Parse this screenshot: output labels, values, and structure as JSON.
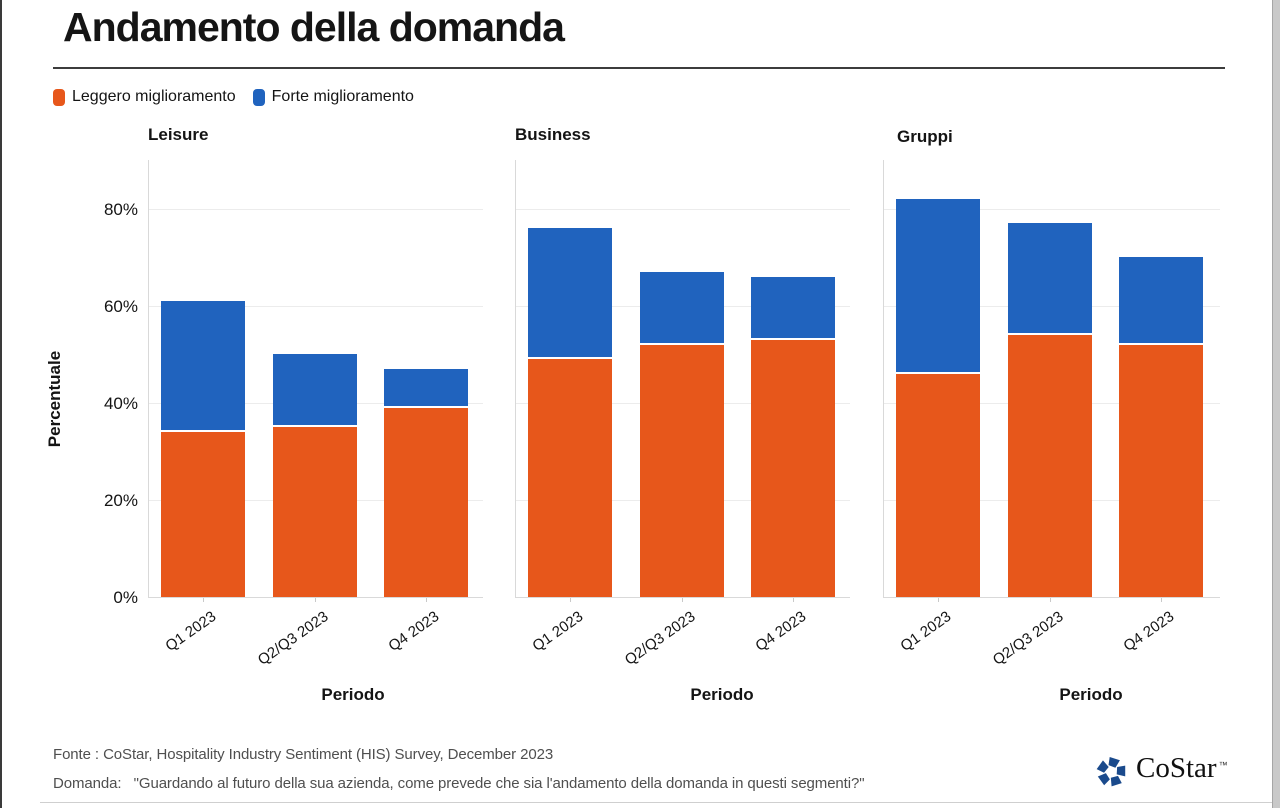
{
  "title": "Andamento della domanda",
  "legend": {
    "items": [
      {
        "label": "Leggero miglioramento"
      },
      {
        "label": "Forte miglioramento"
      }
    ]
  },
  "chart_data": {
    "type": "bar",
    "stacked": true,
    "categories": [
      "Q1 2023",
      "Q2/Q3 2023",
      "Q4 2023"
    ],
    "series_names": [
      "Leggero miglioramento",
      "Forte miglioramento"
    ],
    "colors": {
      "Leggero miglioramento": "#E7571B",
      "Forte miglioramento": "#2063BE"
    },
    "panels": [
      {
        "title": "Leisure",
        "series": [
          {
            "name": "Leggero miglioramento",
            "values": [
              34,
              35,
              39
            ]
          },
          {
            "name": "Forte miglioramento",
            "values": [
              27,
              15,
              8
            ]
          }
        ],
        "stack_totals": [
          61,
          50,
          47
        ]
      },
      {
        "title": "Business",
        "series": [
          {
            "name": "Leggero miglioramento",
            "values": [
              49,
              52,
              53
            ]
          },
          {
            "name": "Forte miglioramento",
            "values": [
              27,
              15,
              13
            ]
          }
        ],
        "stack_totals": [
          76,
          67,
          66
        ]
      },
      {
        "title": "Gruppi",
        "series": [
          {
            "name": "Leggero miglioramento",
            "values": [
              46,
              54,
              52
            ]
          },
          {
            "name": "Forte miglioramento",
            "values": [
              36,
              23,
              18
            ]
          }
        ],
        "stack_totals": [
          82,
          77,
          70
        ]
      }
    ],
    "xlabel": "Periodo",
    "ylabel": "Percentuale",
    "yticks_percent": [
      0,
      20,
      40,
      60,
      80
    ],
    "ytick_labels": [
      "0%",
      "20%",
      "40%",
      "60%",
      "80%"
    ],
    "ylim": [
      0,
      90
    ],
    "grid": true,
    "legend_position": "top-left"
  },
  "footer": {
    "fonte_label": "Fonte :",
    "fonte_text": "CoStar, Hospitality Industry Sentiment (HIS) Survey, December 2023",
    "domanda_label": "Domanda:",
    "domanda_text": "\"Guardando al futuro della sua azienda, come prevede che sia l'andamento della domanda in questi segmenti?\""
  },
  "logo": {
    "wordmark": "CoStar",
    "tm": "™",
    "icon_color": "#1A4A8C"
  }
}
